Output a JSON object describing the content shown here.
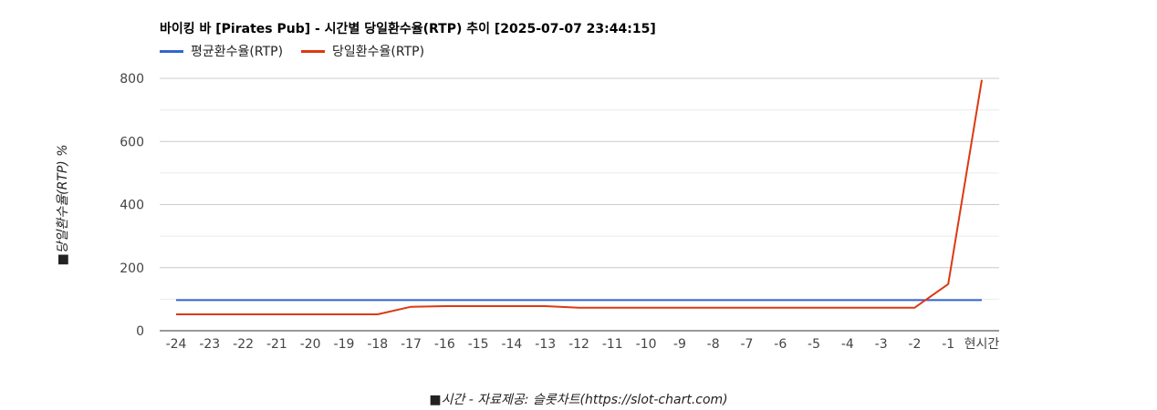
{
  "chart_data": {
    "type": "line",
    "title": "바이킹 바 [Pirates Pub] - 시간별 당일환수율(RTP) 추이 [2025-07-07 23:44:15]",
    "ylabel": "■당일환수율(RTP) %",
    "xlabel": "■시간 - 자료제공: 슬롯차트(https://slot-chart.com)",
    "categories": [
      "-24",
      "-23",
      "-22",
      "-21",
      "-20",
      "-19",
      "-18",
      "-17",
      "-16",
      "-15",
      "-14",
      "-13",
      "-12",
      "-11",
      "-10",
      "-9",
      "-8",
      "-7",
      "-6",
      "-5",
      "-4",
      "-3",
      "-2",
      "-1",
      "현시간"
    ],
    "yticks": [
      0,
      200,
      400,
      600,
      800
    ],
    "ylim": [
      0,
      800
    ],
    "grid": true,
    "legend_position": "top-left",
    "series": [
      {
        "name": "평균환수율(RTP)",
        "color": "#3366cc",
        "values": [
          97,
          97,
          97,
          97,
          97,
          97,
          97,
          97,
          97,
          97,
          97,
          97,
          97,
          97,
          97,
          97,
          97,
          97,
          97,
          97,
          97,
          97,
          97,
          97,
          97
        ]
      },
      {
        "name": "당일환수율(RTP)",
        "color": "#dc3912",
        "values": [
          52,
          52,
          52,
          52,
          52,
          52,
          52,
          76,
          78,
          78,
          78,
          78,
          73,
          73,
          73,
          73,
          73,
          73,
          73,
          73,
          73,
          73,
          73,
          148,
          795
        ]
      }
    ]
  }
}
